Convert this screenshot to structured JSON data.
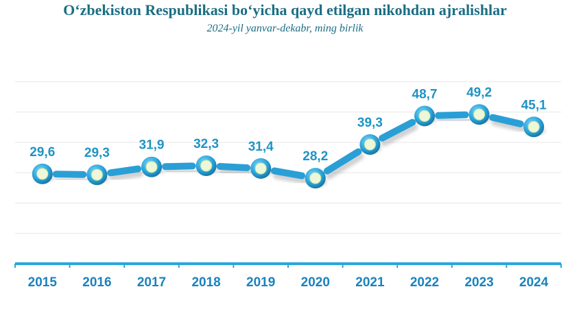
{
  "chart_data": {
    "type": "line",
    "title": "O‘zbekiston Respublikasi bo‘yicha qayd etilgan nikohdan ajralishlar",
    "subtitle": "2024-yil yanvar-dekabr, ming birlik",
    "categories": [
      "2015",
      "2016",
      "2017",
      "2018",
      "2019",
      "2020",
      "2021",
      "2022",
      "2023",
      "2024"
    ],
    "values": [
      29.6,
      29.3,
      31.9,
      32.3,
      31.4,
      28.2,
      39.3,
      48.7,
      49.2,
      45.1
    ],
    "value_labels": [
      "29,6",
      "29,3",
      "31,9",
      "32,3",
      "31,4",
      "28,2",
      "39,3",
      "48,7",
      "49,2",
      "45,1"
    ],
    "ylim": [
      0,
      70
    ],
    "grid": true,
    "legend": "none",
    "colors": {
      "line": "#2a9fd6",
      "marker_fill": "#eef8d8",
      "label": "#1f93c4",
      "axis": "#29a6dc",
      "title": "#1b6e83"
    }
  }
}
